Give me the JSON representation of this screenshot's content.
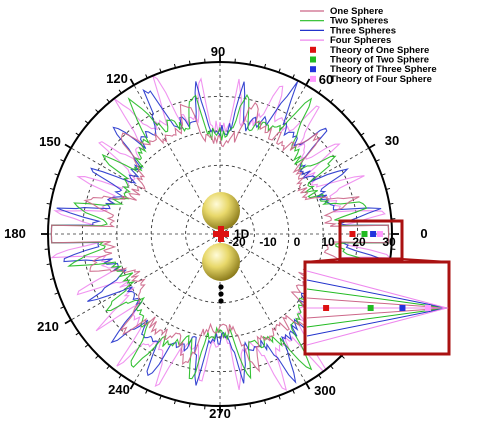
{
  "colors": {
    "one_sphere": "#cc6688",
    "two_spheres": "#22bb22",
    "three_spheres": "#2233cc",
    "four_spheres": "#ee88ee",
    "theory_one": "#dd1111",
    "theory_two": "#22bb22",
    "theory_three": "#2233dd",
    "theory_four": "#ff99ff",
    "zoom_box": "#aa1111",
    "sphere": "#e6d86a",
    "cross": "#dd1111"
  },
  "icons": {
    "source_marker": "red-cross-icon",
    "spheres": "gold-sphere-icon",
    "continuation": "vertical-dots-icon"
  },
  "chart_data": {
    "type": "polar-line",
    "legend": {
      "placement": "top-right",
      "entries": [
        {
          "label": "One Sphere",
          "kind": "line",
          "color_key": "one_sphere"
        },
        {
          "label": "Two Spheres",
          "kind": "line",
          "color_key": "two_spheres"
        },
        {
          "label": "Three Spheres",
          "kind": "line",
          "color_key": "three_spheres"
        },
        {
          "label": "Four Spheres",
          "kind": "line",
          "color_key": "four_spheres"
        },
        {
          "label": "Theory of One Sphere",
          "kind": "square",
          "color_key": "theory_one"
        },
        {
          "label": "Theory of Two Sphere",
          "kind": "square",
          "color_key": "theory_two"
        },
        {
          "label": "Theory of Three Sphere",
          "kind": "square",
          "color_key": "theory_three"
        },
        {
          "label": "Theory of Four Sphere",
          "kind": "square",
          "color_key": "theory_four"
        }
      ]
    },
    "angular_ticks_deg": [
      0,
      30,
      60,
      90,
      120,
      150,
      180,
      210,
      240,
      270,
      300,
      330
    ],
    "angular_tick_labels": [
      "0",
      "30",
      "60",
      "90",
      "120",
      "150",
      "180",
      "210",
      "240",
      "270",
      "300",
      ""
    ],
    "radial_range": [
      -20,
      30
    ],
    "radial_ticks": [
      -20,
      -10,
      0,
      10,
      20,
      30
    ],
    "radial_tick_labels": [
      "-20",
      "-10",
      "0",
      "10",
      "20",
      "30"
    ],
    "grid": true,
    "annotation": "1D",
    "series": [
      {
        "name": "One Sphere",
        "color_key": "one_sphere",
        "base": 12.0,
        "amp": 10.0,
        "spikes": 6,
        "seed": 3
      },
      {
        "name": "Two Spheres",
        "color_key": "two_spheres",
        "base": 14.0,
        "amp": 11.0,
        "spikes": 8,
        "seed": 7
      },
      {
        "name": "Three Spheres",
        "color_key": "three_spheres",
        "base": 15.0,
        "amp": 12.0,
        "spikes": 10,
        "seed": 11
      },
      {
        "name": "Four Spheres",
        "color_key": "four_spheres",
        "base": 16.0,
        "amp": 13.0,
        "spikes": 12,
        "seed": 17
      }
    ],
    "theory_points": [
      {
        "name": "Theory of One Sphere",
        "color_key": "theory_one",
        "angle_deg": 0,
        "r": 18.5
      },
      {
        "name": "Theory of Two Sphere",
        "color_key": "theory_two",
        "angle_deg": 0,
        "r": 22.0
      },
      {
        "name": "Theory of Three Sphere",
        "color_key": "theory_three",
        "angle_deg": 0,
        "r": 24.5
      },
      {
        "name": "Theory of Four Sphere",
        "color_key": "theory_four",
        "angle_deg": 0,
        "r": 26.5
      }
    ]
  }
}
